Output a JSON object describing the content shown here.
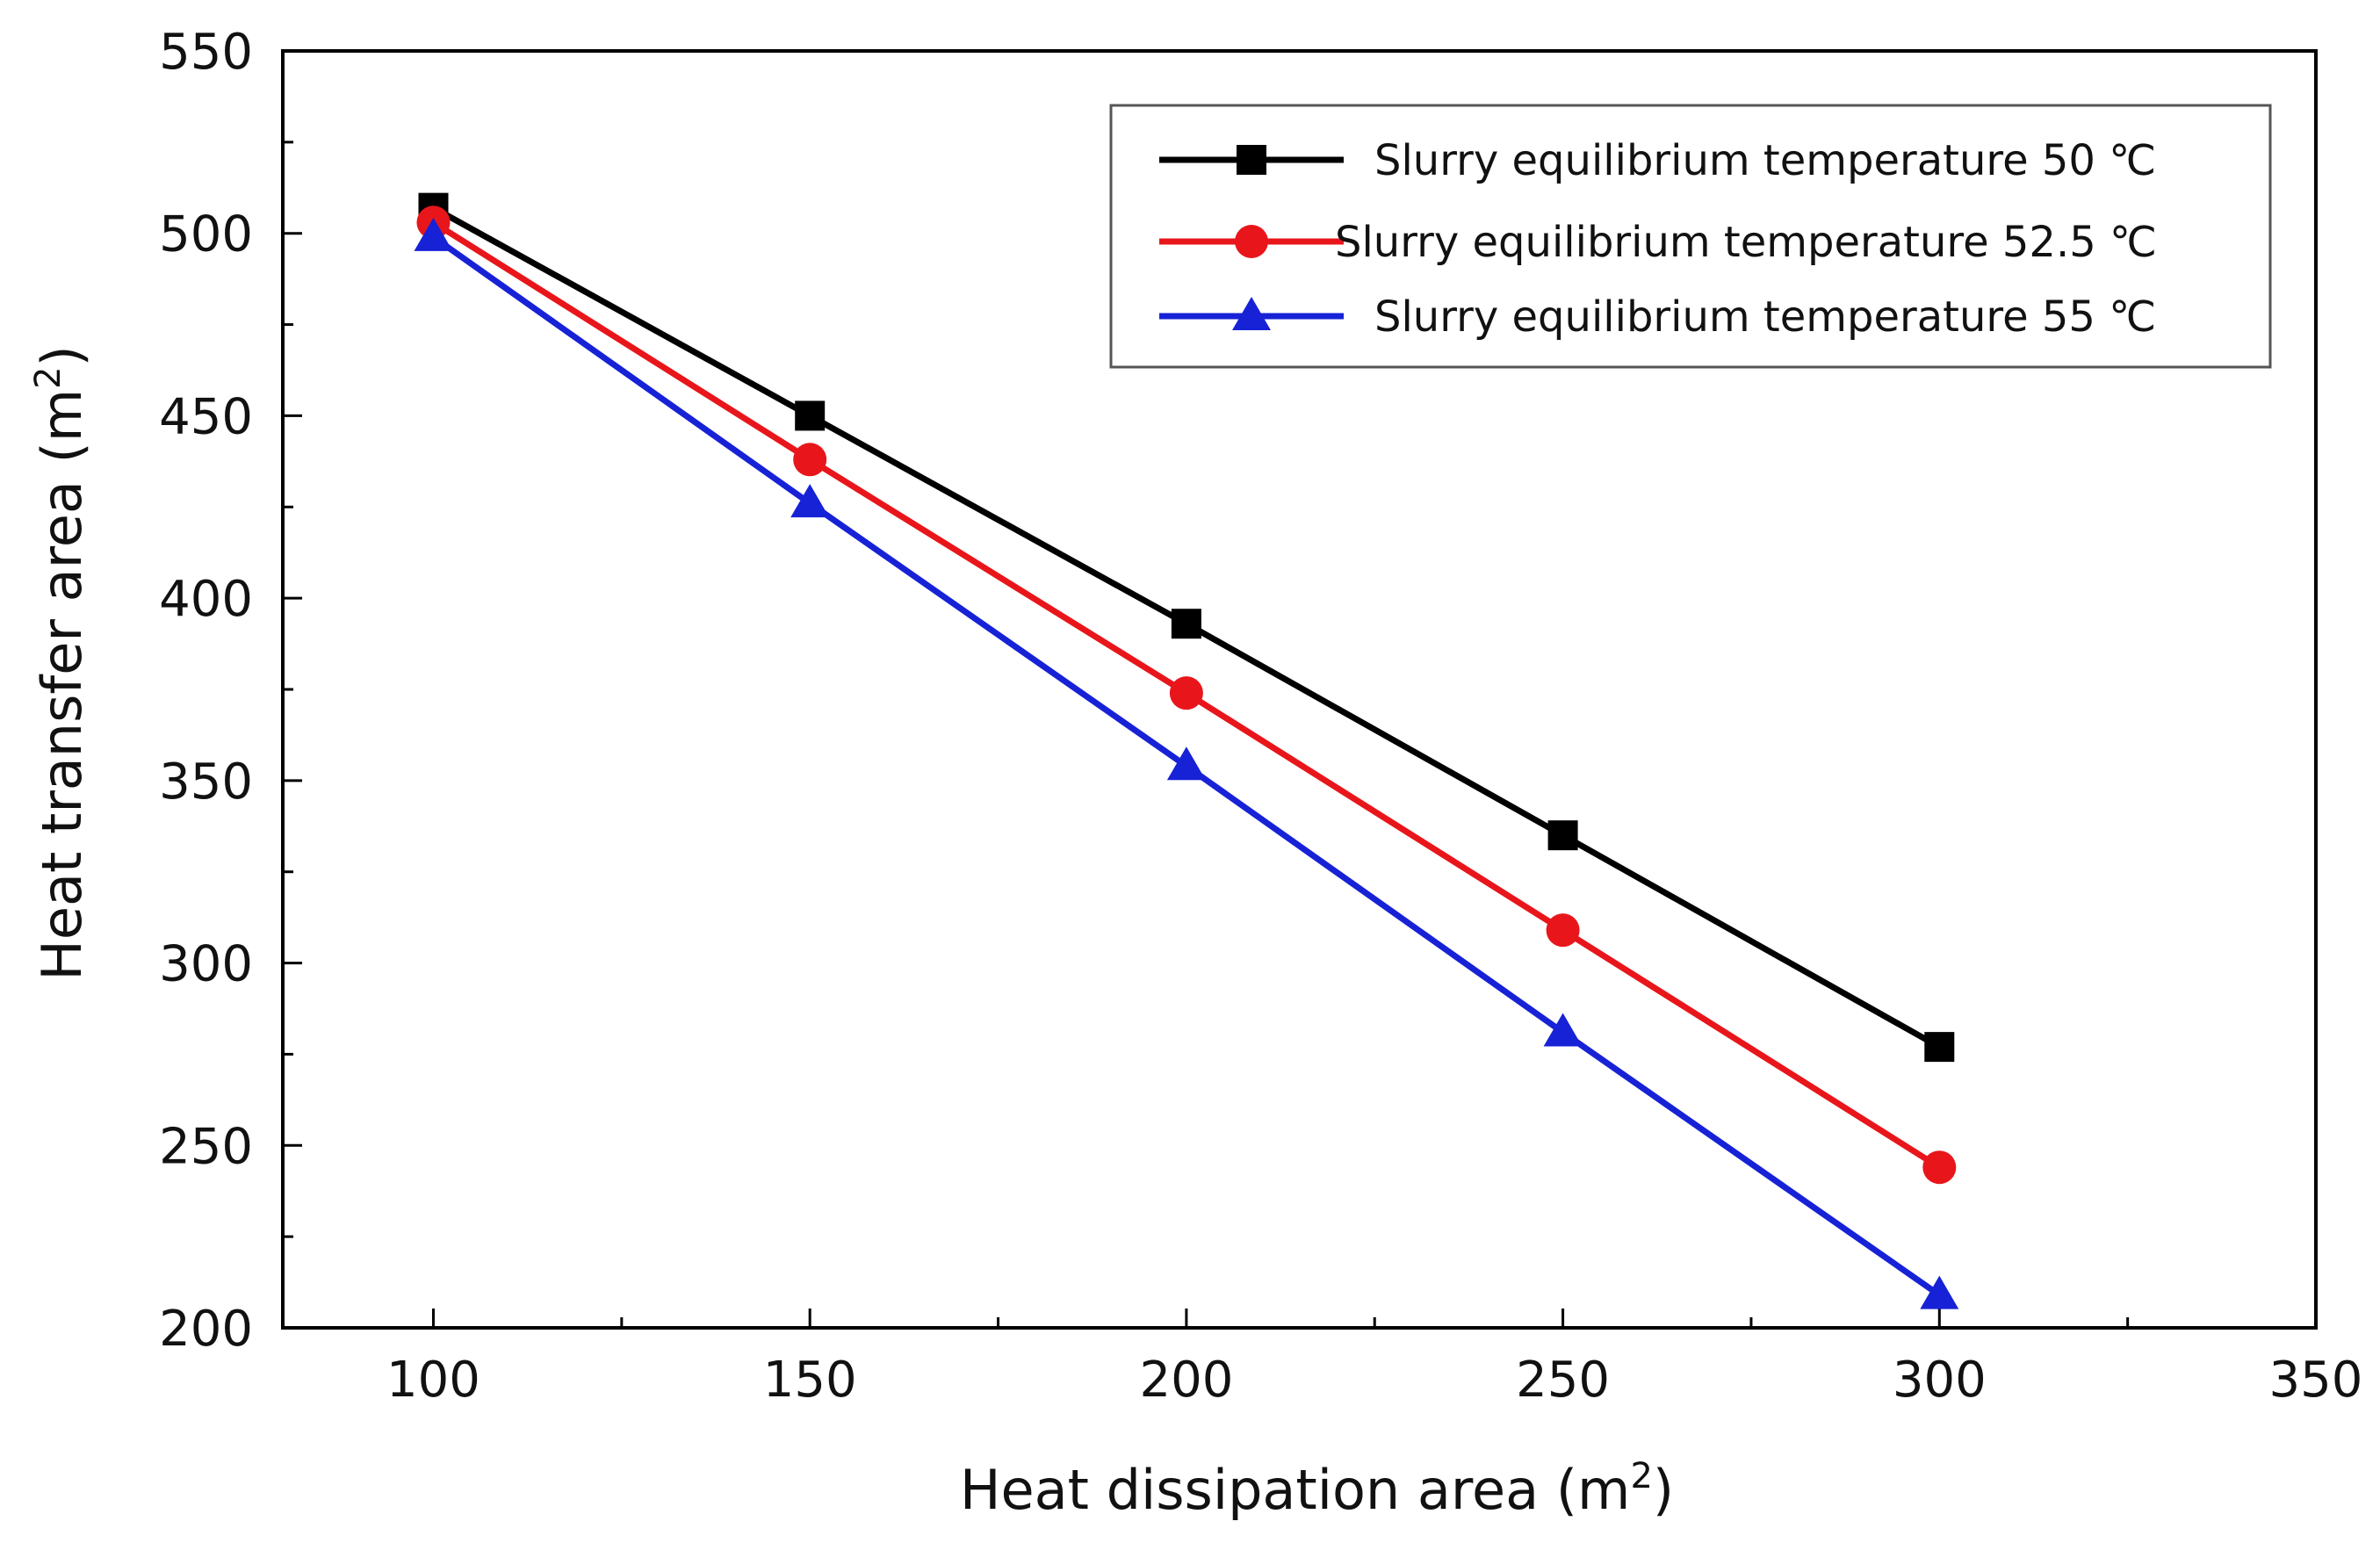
{
  "chart_data": {
    "type": "line",
    "title": "",
    "xlabel": "Heat dissipation area (m",
    "xlabel_sup": "2",
    "xlabel_end": ")",
    "ylabel": "Heat transfer area (m",
    "ylabel_sup": "2",
    "ylabel_end": ")",
    "xlim": [
      80,
      350
    ],
    "ylim": [
      200,
      550
    ],
    "x": [
      100,
      150,
      200,
      250,
      300
    ],
    "xticks": [
      100,
      150,
      200,
      250,
      300,
      350
    ],
    "yticks": [
      200,
      250,
      300,
      350,
      400,
      450,
      500,
      550
    ],
    "grid": false,
    "legend_position": "top-right",
    "series": [
      {
        "name": "Slurry equilibrium temperature  50  ℃",
        "values": [
          507,
          450,
          393,
          335,
          277
        ],
        "color": "#000000",
        "marker": "square"
      },
      {
        "name": "Slurry equilibrium temperature  52.5  ℃",
        "values": [
          503,
          438,
          374,
          309,
          244
        ],
        "color": "#e8161b",
        "marker": "circle"
      },
      {
        "name": "Slurry equilibrium temperature  55  ℃",
        "values": [
          499,
          426,
          354,
          281,
          209
        ],
        "color": "#1722d6",
        "marker": "triangle"
      }
    ]
  }
}
